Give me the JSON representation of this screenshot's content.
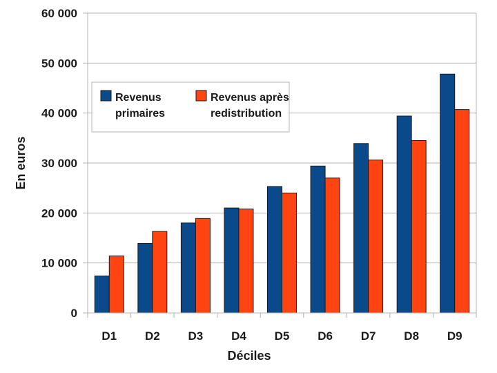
{
  "chart_data": {
    "type": "bar",
    "categories": [
      "D1",
      "D2",
      "D3",
      "D4",
      "D5",
      "D6",
      "D7",
      "D8",
      "D9"
    ],
    "series": [
      {
        "name": "Revenus primaires",
        "name_lines": [
          "Revenus",
          "primaires"
        ],
        "color": "#0b4a8a",
        "values": [
          7400,
          13900,
          18000,
          21000,
          25300,
          29400,
          33900,
          39400,
          47800
        ]
      },
      {
        "name": "Revenus après redistribution",
        "name_lines": [
          "Revenus après",
          "redistribution"
        ],
        "color": "#ff4411",
        "values": [
          11400,
          16300,
          18900,
          20800,
          24000,
          27000,
          30600,
          34500,
          40700
        ]
      }
    ],
    "xlabel": "Déciles",
    "ylabel": "En euros",
    "ylim": [
      0,
      60000
    ],
    "yticks": [
      0,
      10000,
      20000,
      30000,
      40000,
      50000,
      60000
    ],
    "ytick_labels": [
      "0",
      "10 000",
      "20 000",
      "30 000",
      "40 000",
      "50 000",
      "60 000"
    ],
    "grid": true,
    "legend_position": "top-left"
  }
}
